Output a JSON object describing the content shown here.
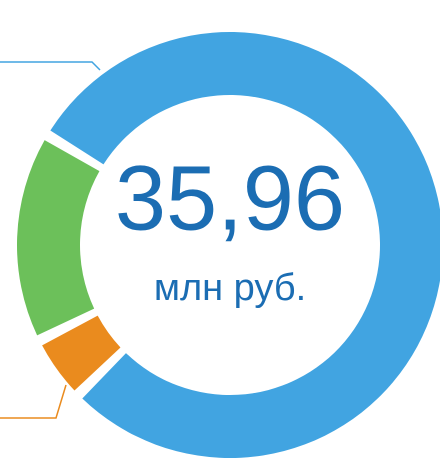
{
  "chart_data": {
    "type": "donut",
    "values": [
      79,
      5,
      16
    ],
    "colors": [
      "#41a4e1",
      "#ea8b1e",
      "#6cc05a"
    ],
    "center_label": "35,96",
    "center_sublabel": "млн руб."
  }
}
